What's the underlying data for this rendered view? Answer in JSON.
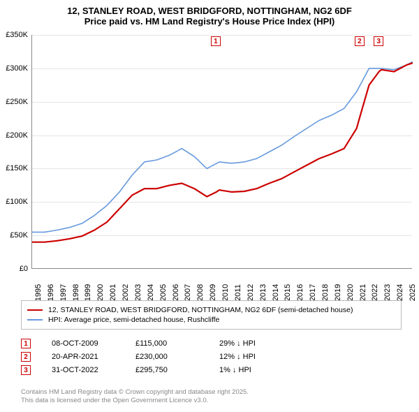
{
  "title": {
    "main": "12, STANLEY ROAD, WEST BRIDGFORD, NOTTINGHAM, NG2 6DF",
    "sub": "Price paid vs. HM Land Registry's House Price Index (HPI)",
    "fontsize": 13,
    "fontweight": "bold",
    "color": "#000000"
  },
  "chart": {
    "type": "line",
    "background_color": "#ffffff",
    "grid_color": "#e5e5e5",
    "axis_color": "#888888",
    "xlim": [
      1995,
      2025.5
    ],
    "ylim": [
      0,
      350000
    ],
    "ytick_step": 50000,
    "ytick_labels": [
      "£0",
      "£50K",
      "£100K",
      "£150K",
      "£200K",
      "£250K",
      "£300K",
      "£350K"
    ],
    "xtick_labels": [
      "1995",
      "1996",
      "1997",
      "1998",
      "1999",
      "2000",
      "2001",
      "2002",
      "2003",
      "2004",
      "2005",
      "2006",
      "2007",
      "2008",
      "2009",
      "2010",
      "2011",
      "2012",
      "2013",
      "2014",
      "2015",
      "2016",
      "2017",
      "2018",
      "2019",
      "2020",
      "2021",
      "2022",
      "2023",
      "2024",
      "2025"
    ],
    "series": [
      {
        "name": "12, STANLEY ROAD, WEST BRIDGFORD, NOTTINGHAM, NG2 6DF (semi-detached house)",
        "color": "#cc0000",
        "line_width": 2.2,
        "points": [
          [
            1995,
            40000
          ],
          [
            1996,
            40000
          ],
          [
            1997,
            42000
          ],
          [
            1998,
            45000
          ],
          [
            1999,
            49000
          ],
          [
            2000,
            58000
          ],
          [
            2001,
            70000
          ],
          [
            2002,
            90000
          ],
          [
            2003,
            110000
          ],
          [
            2004,
            120000
          ],
          [
            2005,
            120000
          ],
          [
            2006,
            125000
          ],
          [
            2007,
            128000
          ],
          [
            2008,
            120000
          ],
          [
            2009,
            108000
          ],
          [
            2009.77,
            115000
          ],
          [
            2010,
            118000
          ],
          [
            2011,
            115000
          ],
          [
            2012,
            116000
          ],
          [
            2013,
            120000
          ],
          [
            2014,
            128000
          ],
          [
            2015,
            135000
          ],
          [
            2016,
            145000
          ],
          [
            2017,
            155000
          ],
          [
            2018,
            165000
          ],
          [
            2019,
            172000
          ],
          [
            2020,
            180000
          ],
          [
            2021,
            210000
          ],
          [
            2021.3,
            230000
          ],
          [
            2022,
            275000
          ],
          [
            2022.83,
            295750
          ],
          [
            2023,
            298000
          ],
          [
            2024,
            295000
          ],
          [
            2025,
            305000
          ],
          [
            2025.5,
            308000
          ]
        ]
      },
      {
        "name": "HPI: Average price, semi-detached house, Rushcliffe",
        "color": "#6699dd",
        "line_width": 1.6,
        "points": [
          [
            1995,
            55000
          ],
          [
            1996,
            55000
          ],
          [
            1997,
            58000
          ],
          [
            1998,
            62000
          ],
          [
            1999,
            68000
          ],
          [
            2000,
            80000
          ],
          [
            2001,
            95000
          ],
          [
            2002,
            115000
          ],
          [
            2003,
            140000
          ],
          [
            2004,
            160000
          ],
          [
            2005,
            163000
          ],
          [
            2006,
            170000
          ],
          [
            2007,
            180000
          ],
          [
            2008,
            168000
          ],
          [
            2009,
            150000
          ],
          [
            2010,
            160000
          ],
          [
            2011,
            158000
          ],
          [
            2012,
            160000
          ],
          [
            2013,
            165000
          ],
          [
            2014,
            175000
          ],
          [
            2015,
            185000
          ],
          [
            2016,
            198000
          ],
          [
            2017,
            210000
          ],
          [
            2018,
            222000
          ],
          [
            2019,
            230000
          ],
          [
            2020,
            240000
          ],
          [
            2021,
            265000
          ],
          [
            2022,
            300000
          ],
          [
            2023,
            300000
          ],
          [
            2024,
            298000
          ],
          [
            2025,
            305000
          ],
          [
            2025.5,
            310000
          ]
        ]
      }
    ],
    "markers": [
      {
        "label": "1",
        "x": 2009.77
      },
      {
        "label": "2",
        "x": 2021.3
      },
      {
        "label": "3",
        "x": 2022.83
      }
    ]
  },
  "legend": {
    "entries": [
      {
        "color": "#cc0000",
        "text": "12, STANLEY ROAD, WEST BRIDGFORD, NOTTINGHAM, NG2 6DF (semi-detached house)"
      },
      {
        "color": "#6699dd",
        "text": "HPI: Average price, semi-detached house, Rushcliffe"
      }
    ],
    "border_color": "#bbbbbb",
    "fontsize": 10.5
  },
  "transactions": [
    {
      "marker": "1",
      "date": "08-OCT-2009",
      "price": "£115,000",
      "diff": "29% ↓ HPI"
    },
    {
      "marker": "2",
      "date": "20-APR-2021",
      "price": "£230,000",
      "diff": "12% ↓ HPI"
    },
    {
      "marker": "3",
      "date": "31-OCT-2022",
      "price": "£295,750",
      "diff": "1% ↓ HPI"
    }
  ],
  "footer": {
    "line1": "Contains HM Land Registry data © Crown copyright and database right 2025.",
    "line2": "This data is licensed under the Open Government Licence v3.0.",
    "color": "#888888"
  }
}
